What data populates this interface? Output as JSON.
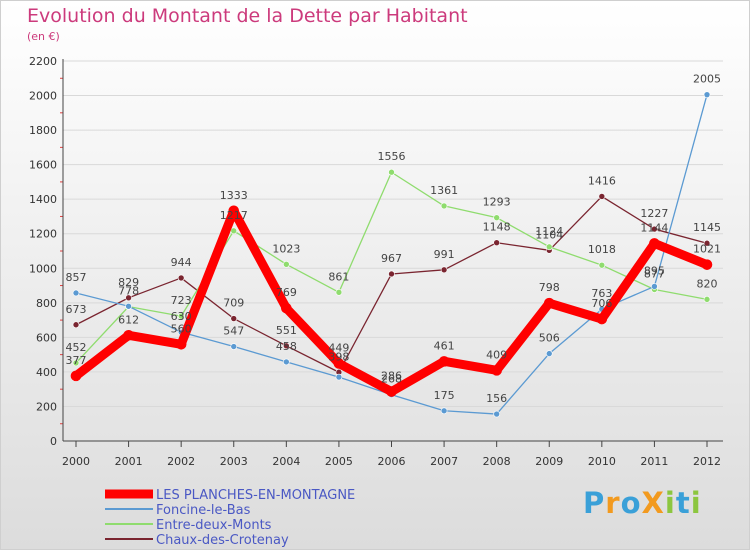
{
  "chart_data": {
    "type": "line",
    "title": "Evolution du Montant de la Dette par Habitant",
    "subtitle": "(en €)",
    "xlabel": "",
    "ylabel": "",
    "categories": [
      "2000",
      "2001",
      "2002",
      "2003",
      "2004",
      "2005",
      "2006",
      "2007",
      "2008",
      "2009",
      "2010",
      "2011",
      "2012"
    ],
    "ylim": [
      0,
      2200
    ],
    "yticks": [
      0,
      200,
      400,
      600,
      800,
      1000,
      1200,
      1400,
      1600,
      1800,
      2000,
      2200
    ],
    "grid": true,
    "legend_position": "bottom-left",
    "series": [
      {
        "name": "Chaux-des-Crotenay",
        "color": "#7a2530",
        "values": [
          673,
          829,
          944,
          709,
          551,
          398,
          967,
          991,
          1148,
          1104,
          1416,
          1227,
          1145
        ],
        "labels": [
          "673",
          "829",
          "944",
          "709",
          "551",
          "398",
          "967",
          "991",
          "1148",
          "1104",
          "1416",
          "1227",
          "1145"
        ]
      },
      {
        "name": "Entre-deux-Monts",
        "color": "#8fdc6e",
        "values": [
          452,
          778,
          723,
          1217,
          1023,
          861,
          1556,
          1361,
          1293,
          1124,
          1018,
          877,
          820
        ],
        "labels": [
          "452",
          "778",
          "723",
          "1217",
          "1023",
          "861",
          "1556",
          "1361",
          "1293",
          "1124",
          "1018",
          "877",
          "820"
        ]
      },
      {
        "name": "Foncine-le-Bas",
        "color": "#5b9ad2",
        "values": [
          857,
          780,
          630,
          547,
          458,
          370,
          268,
          175,
          156,
          506,
          763,
          895,
          2005
        ],
        "labels": [
          "857",
          "",
          "630",
          "547",
          "458",
          "",
          "268",
          "175",
          "156",
          "506",
          "763",
          "895",
          "2005"
        ]
      },
      {
        "name": "LES PLANCHES-EN-MONTAGNE",
        "color": "#ff0000",
        "values": [
          377,
          612,
          560,
          1333,
          769,
          449,
          286,
          461,
          409,
          798,
          706,
          1144,
          1021
        ],
        "labels": [
          "377",
          "612",
          "560",
          "1333",
          "769",
          "449",
          "286",
          "461",
          "409",
          "798",
          "706",
          "1144",
          "1021"
        ]
      }
    ],
    "legend": [
      {
        "name": "LES PLANCHES-EN-MONTAGNE",
        "color": "#ff0000"
      },
      {
        "name": "Foncine-le-Bas",
        "color": "#5b9ad2"
      },
      {
        "name": "Entre-deux-Monts",
        "color": "#8fdc6e"
      },
      {
        "name": "Chaux-des-Crotenay",
        "color": "#7a2530"
      }
    ]
  },
  "logo": {
    "text": "ProXiti",
    "letters": [
      "P",
      "r",
      "o",
      "X",
      "i",
      "t",
      "i"
    ],
    "colors": [
      "#3aa0d8",
      "#f29a1f",
      "#3aa0d8",
      "#f29a1f",
      "#8cc63f",
      "#3aa0d8",
      "#8cc63f"
    ]
  }
}
